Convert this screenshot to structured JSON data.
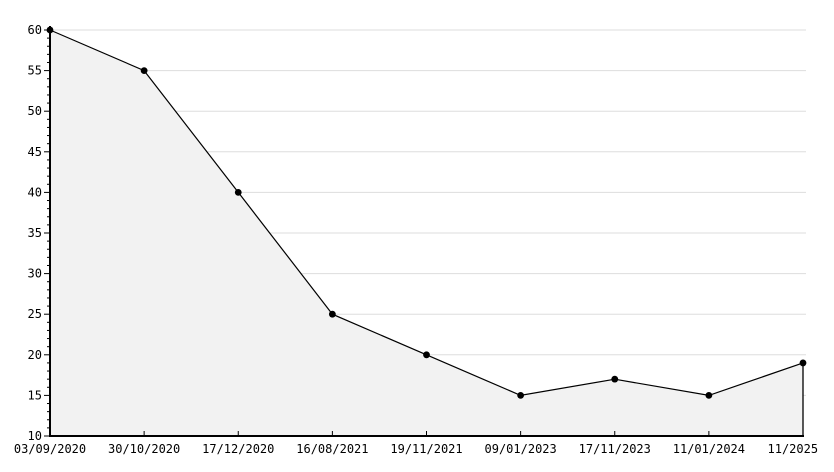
{
  "chart_data": {
    "type": "area",
    "title": "",
    "xlabel": "",
    "ylabel": "",
    "categories": [
      "03/09/2020",
      "30/10/2020",
      "17/12/2020",
      "16/08/2021",
      "19/11/2021",
      "09/01/2023",
      "17/11/2023",
      "11/01/2024",
      "11/2025"
    ],
    "values": [
      60,
      55,
      40,
      25,
      20,
      15,
      17,
      15,
      19
    ],
    "ylim": [
      10,
      60
    ],
    "y_major_step": 5,
    "y_minor_step": 1,
    "grid": "horizontal-major",
    "legend_position": "none",
    "colors": {
      "background": "#ffffff",
      "area_fill": "#f2f2f2",
      "line": "#000000",
      "marker": "#000000",
      "grid": "#dddddd",
      "axis": "#000000",
      "tick": "#000000",
      "label": "#000000"
    }
  }
}
